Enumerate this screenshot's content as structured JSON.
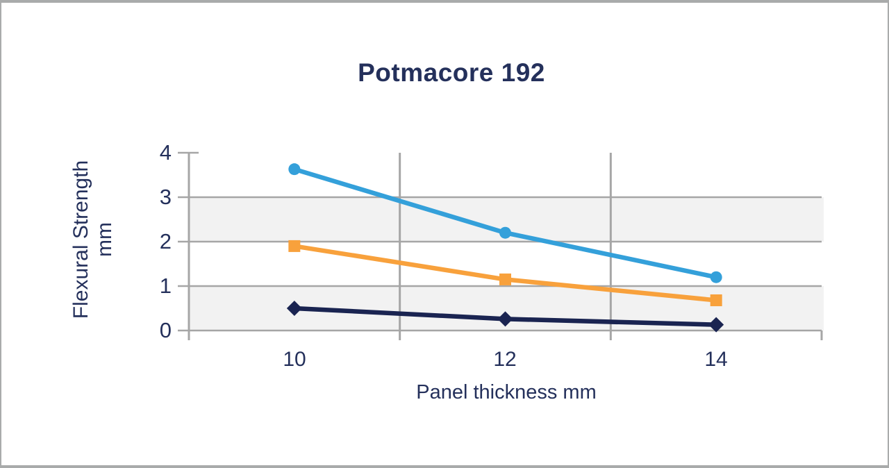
{
  "frame": {
    "background": "#ffffff",
    "border_color": "#a9abab"
  },
  "chart_data": {
    "type": "line",
    "title": "Potmacore 192",
    "xlabel": "Panel thickness mm",
    "ylabel_line1": "Flexural Strength",
    "ylabel_line2": "mm",
    "categories": [
      "10",
      "12",
      "14"
    ],
    "x_values": [
      10,
      12,
      14
    ],
    "yticks": [
      "4",
      "3",
      "2",
      "1",
      "0"
    ],
    "ylim": [
      0,
      4
    ],
    "series": [
      {
        "id": "blue-circle-series",
        "marker": "circle",
        "color": "#34a0da",
        "values": [
          3.63,
          2.2,
          1.2
        ]
      },
      {
        "id": "orange-square-series",
        "marker": "square",
        "color": "#f8a13c",
        "values": [
          1.9,
          1.15,
          0.68
        ]
      },
      {
        "id": "navy-diamond-series",
        "marker": "diamond",
        "color": "#1a2451",
        "values": [
          0.5,
          0.26,
          0.13
        ]
      }
    ],
    "grid": {
      "line_color": "#a6a6a6",
      "band_fill": "#f2f2f2",
      "h_gridlines": true,
      "v_gridlines": "between-categories"
    },
    "legend": "none",
    "text_color": "#24305b"
  }
}
